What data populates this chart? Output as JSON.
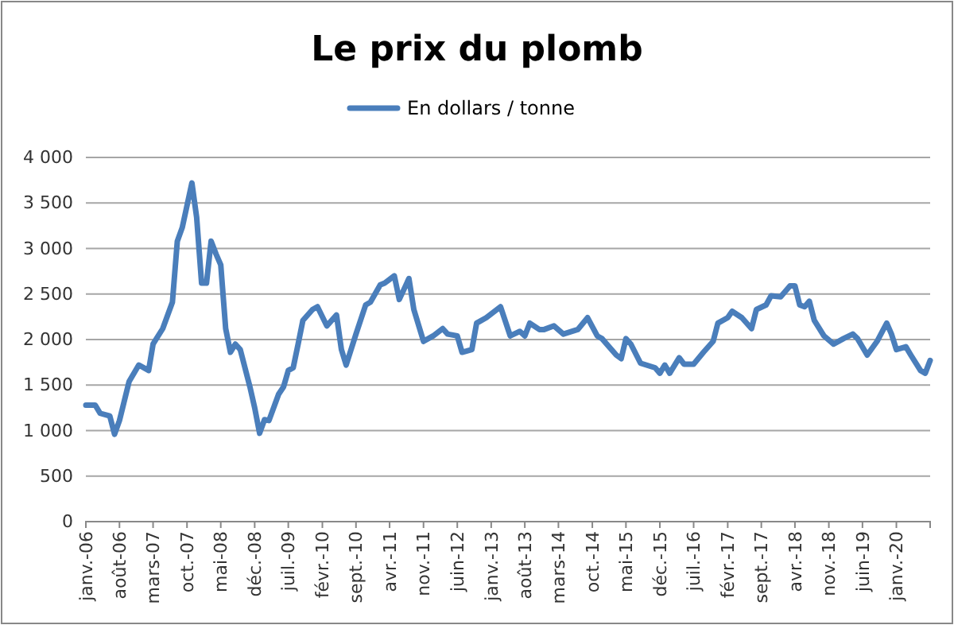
{
  "chart_data": {
    "type": "line",
    "title": "Le prix du plomb",
    "x": [
      "2006-01",
      "2006-03",
      "2006-04",
      "2006-06",
      "2006-07",
      "2006-08",
      "2006-10",
      "2006-12",
      "2007-02",
      "2007-03",
      "2007-05",
      "2007-07",
      "2007-08",
      "2007-09",
      "2007-11",
      "2007-12",
      "2008-01",
      "2008-02",
      "2008-03",
      "2008-04",
      "2008-05",
      "2008-06",
      "2008-07",
      "2008-08",
      "2008-09",
      "2008-11",
      "2008-12",
      "2009-01",
      "2009-02",
      "2009-03",
      "2009-05",
      "2009-06",
      "2009-07",
      "2009-08",
      "2009-09",
      "2009-10",
      "2009-12",
      "2010-01",
      "2010-03",
      "2010-05",
      "2010-06",
      "2010-07",
      "2010-09",
      "2010-11",
      "2010-12",
      "2011-02",
      "2011-03",
      "2011-05",
      "2011-06",
      "2011-08",
      "2011-09",
      "2011-11",
      "2012-01",
      "2012-03",
      "2012-04",
      "2012-06",
      "2012-07",
      "2012-09",
      "2012-10",
      "2012-12",
      "2013-03",
      "2013-05",
      "2013-07",
      "2013-08",
      "2013-09",
      "2013-11",
      "2013-12",
      "2014-02",
      "2014-04",
      "2014-07",
      "2014-09",
      "2014-11",
      "2014-12",
      "2015-03",
      "2015-04",
      "2015-05",
      "2015-06",
      "2015-08",
      "2015-11",
      "2015-12",
      "2016-01",
      "2016-02",
      "2016-04",
      "2016-05",
      "2016-07",
      "2016-09",
      "2016-11",
      "2016-12",
      "2017-02",
      "2017-03",
      "2017-05",
      "2017-07",
      "2017-08",
      "2017-10",
      "2017-11",
      "2018-01",
      "2018-03",
      "2018-04",
      "2018-05",
      "2018-06",
      "2018-07",
      "2018-08",
      "2018-10",
      "2018-12",
      "2019-02",
      "2019-04",
      "2019-05",
      "2019-07",
      "2019-09",
      "2019-11",
      "2019-12",
      "2020-01",
      "2020-03",
      "2020-04",
      "2020-06",
      "2020-07",
      "2020-08"
    ],
    "series": [
      {
        "name": "En dollars / tonne",
        "color": "#4a7ebb",
        "values": [
          1280,
          1280,
          1190,
          1160,
          960,
          1110,
          1540,
          1720,
          1660,
          1950,
          2120,
          2410,
          3080,
          3230,
          3720,
          3340,
          2620,
          2620,
          3080,
          2940,
          2820,
          2120,
          1860,
          1950,
          1890,
          1480,
          1250,
          970,
          1120,
          1110,
          1400,
          1480,
          1660,
          1690,
          1950,
          2210,
          2330,
          2360,
          2150,
          2270,
          1890,
          1720,
          2060,
          2380,
          2410,
          2600,
          2620,
          2700,
          2440,
          2670,
          2330,
          1980,
          2040,
          2120,
          2060,
          2040,
          1860,
          1890,
          2180,
          2240,
          2360,
          2040,
          2090,
          2040,
          2180,
          2110,
          2110,
          2150,
          2060,
          2110,
          2240,
          2040,
          2010,
          1830,
          1790,
          2010,
          1950,
          1740,
          1690,
          1630,
          1720,
          1630,
          1800,
          1730,
          1730,
          1860,
          1980,
          2180,
          2240,
          2310,
          2240,
          2120,
          2330,
          2380,
          2480,
          2470,
          2590,
          2590,
          2380,
          2360,
          2420,
          2210,
          2040,
          1950,
          2010,
          2060,
          2010,
          1830,
          1980,
          2180,
          2060,
          1890,
          1920,
          1830,
          1660,
          1630,
          1770
        ]
      }
    ],
    "xlim": [
      "2006-01",
      "2020-08"
    ],
    "xticks": [
      {
        "value": "2006-01",
        "label": "janv.-06"
      },
      {
        "value": "2006-08",
        "label": "août-06"
      },
      {
        "value": "2007-03",
        "label": "mars-07"
      },
      {
        "value": "2007-10",
        "label": "oct.-07"
      },
      {
        "value": "2008-05",
        "label": "mai-08"
      },
      {
        "value": "2008-12",
        "label": "déc.-08"
      },
      {
        "value": "2009-07",
        "label": "juil.-09"
      },
      {
        "value": "2010-02",
        "label": "févr.-10"
      },
      {
        "value": "2010-09",
        "label": "sept.-10"
      },
      {
        "value": "2011-04",
        "label": "avr.-11"
      },
      {
        "value": "2011-11",
        "label": "nov.-11"
      },
      {
        "value": "2012-06",
        "label": "juin-12"
      },
      {
        "value": "2013-01",
        "label": "janv.-13"
      },
      {
        "value": "2013-08",
        "label": "août-13"
      },
      {
        "value": "2014-03",
        "label": "mars-14"
      },
      {
        "value": "2014-10",
        "label": "oct.-14"
      },
      {
        "value": "2015-05",
        "label": "mai-15"
      },
      {
        "value": "2015-12",
        "label": "déc.-15"
      },
      {
        "value": "2016-07",
        "label": "juil.-16"
      },
      {
        "value": "2017-02",
        "label": "févr.-17"
      },
      {
        "value": "2017-09",
        "label": "sept.-17"
      },
      {
        "value": "2018-04",
        "label": "avr.-18"
      },
      {
        "value": "2018-11",
        "label": "nov.-18"
      },
      {
        "value": "2019-06",
        "label": "juin-19"
      },
      {
        "value": "2020-01",
        "label": "janv.-20"
      }
    ],
    "ylim": [
      0,
      4000
    ],
    "yticks": [
      0,
      500,
      {
        "value": 1000,
        "label": "1 000"
      },
      {
        "value": 1500,
        "label": "1 500"
      },
      {
        "value": 2000,
        "label": "2 000"
      },
      {
        "value": 2500,
        "label": "2 500"
      },
      {
        "value": 3000,
        "label": "3 000"
      },
      {
        "value": 3500,
        "label": "3 500"
      },
      {
        "value": 4000,
        "label": "4 000"
      }
    ],
    "grid": "y",
    "legend": "top",
    "marker": "none",
    "line_style": "solid"
  }
}
